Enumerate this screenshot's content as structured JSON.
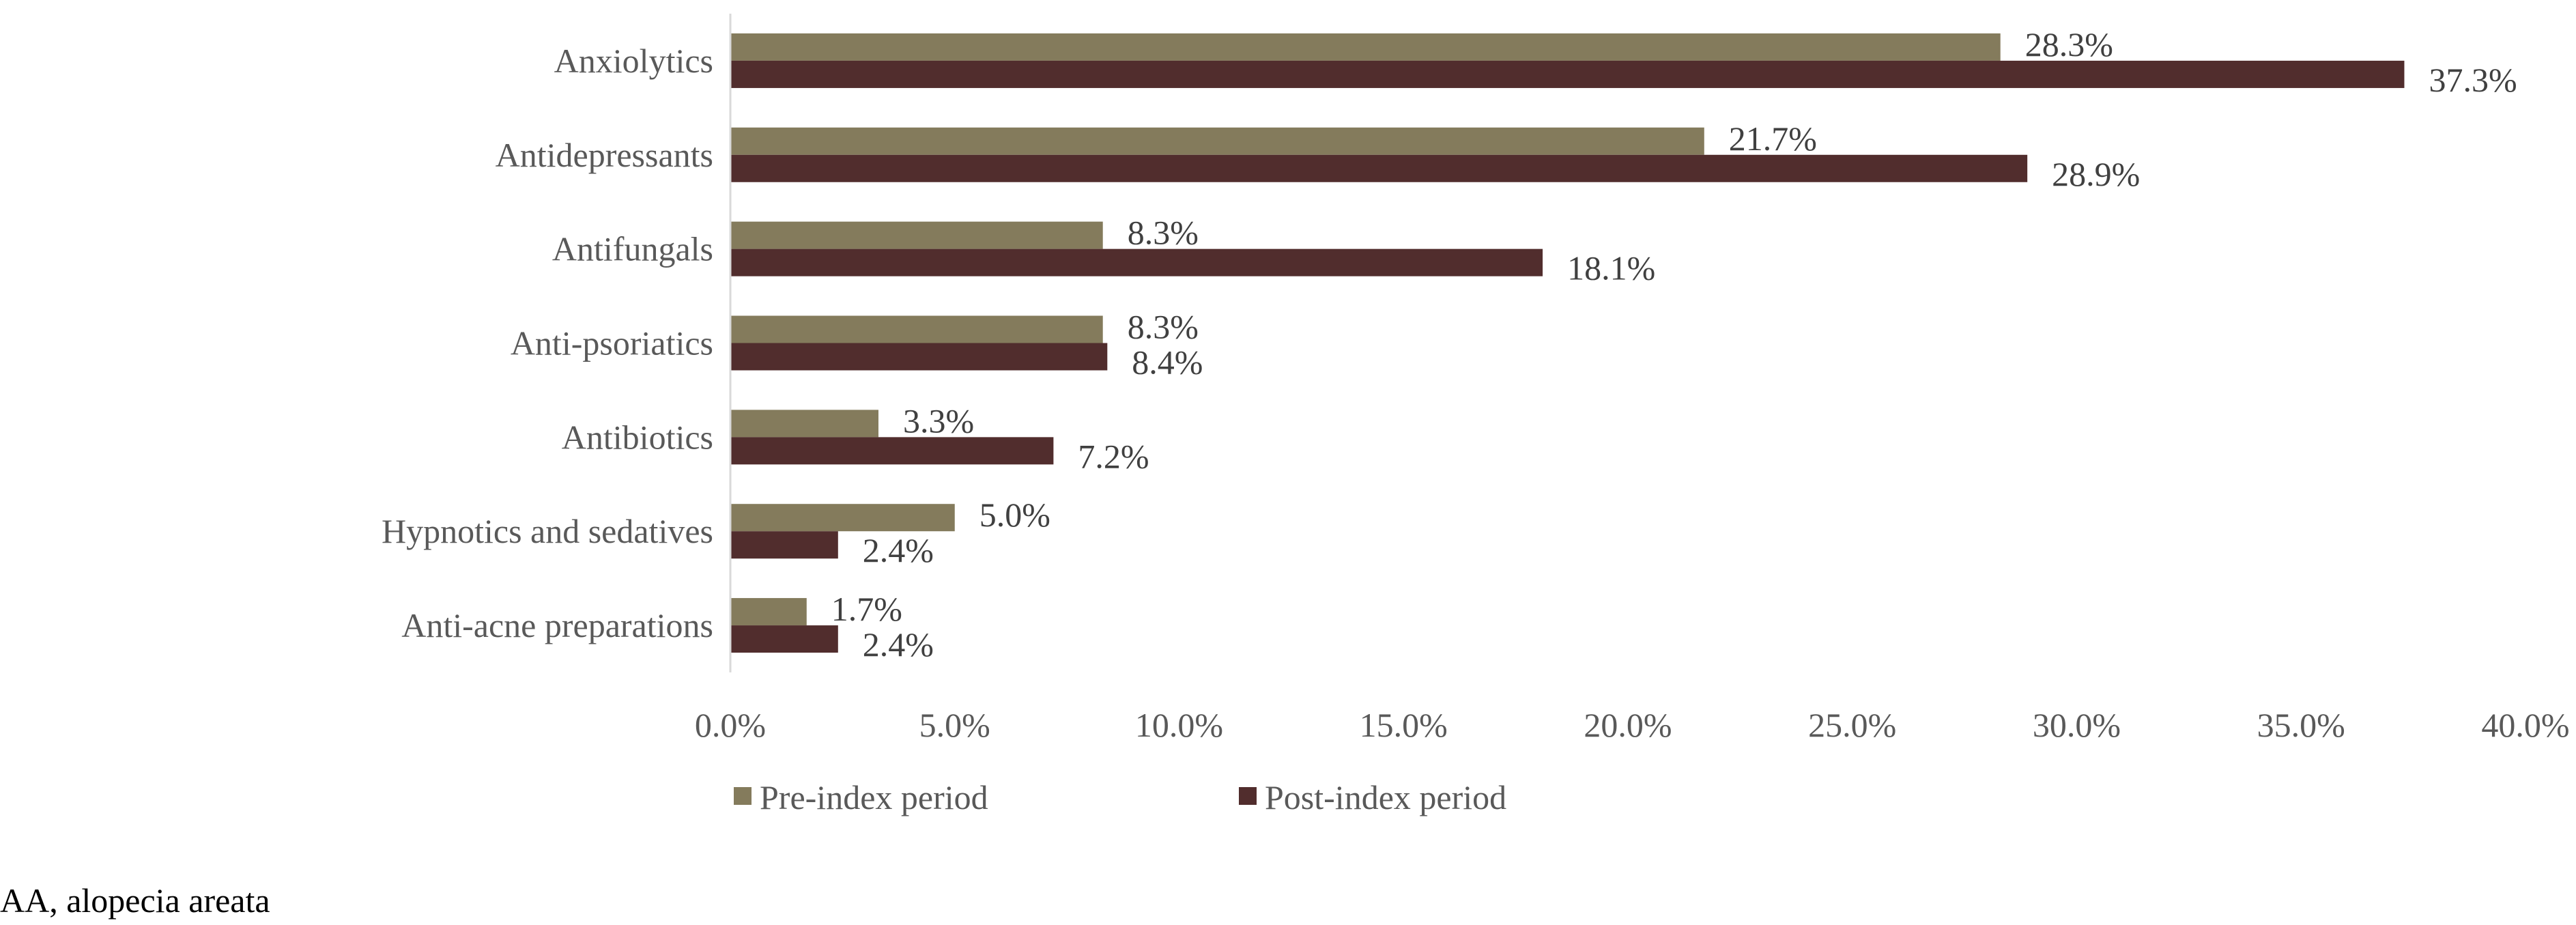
{
  "chart_data": {
    "type": "bar",
    "orientation": "horizontal",
    "categories": [
      "Anxiolytics",
      "Antidepressants",
      "Antifungals",
      "Anti-psoriatics",
      "Antibiotics",
      "Hypnotics and sedatives",
      "Anti-acne preparations"
    ],
    "series": [
      {
        "name": "Pre-index period",
        "color": "#847b5c",
        "values": [
          28.3,
          21.7,
          8.3,
          8.3,
          3.3,
          5.0,
          1.7
        ],
        "labels": [
          "28.3%",
          "21.7%",
          "8.3%",
          "8.3%",
          "3.3%",
          "5.0%",
          "1.7%"
        ]
      },
      {
        "name": "Post-index period",
        "color": "#512d2d",
        "values": [
          37.3,
          28.9,
          18.1,
          8.4,
          7.2,
          2.4,
          2.4
        ],
        "labels": [
          "37.3%",
          "28.9%",
          "18.1%",
          "8.4%",
          "7.2%",
          "2.4%",
          "2.4%"
        ]
      }
    ],
    "xlim": [
      0,
      40
    ],
    "xticks": [
      0,
      5,
      10,
      15,
      20,
      25,
      30,
      35,
      40
    ],
    "xtick_labels": [
      "0.0%",
      "5.0%",
      "10.0%",
      "15.0%",
      "20.0%",
      "25.0%",
      "30.0%",
      "35.0%",
      "40.0%"
    ],
    "grid": false,
    "legend_position": "bottom",
    "title": "",
    "xlabel": "",
    "ylabel": ""
  },
  "footnote": "AA, alopecia areata"
}
